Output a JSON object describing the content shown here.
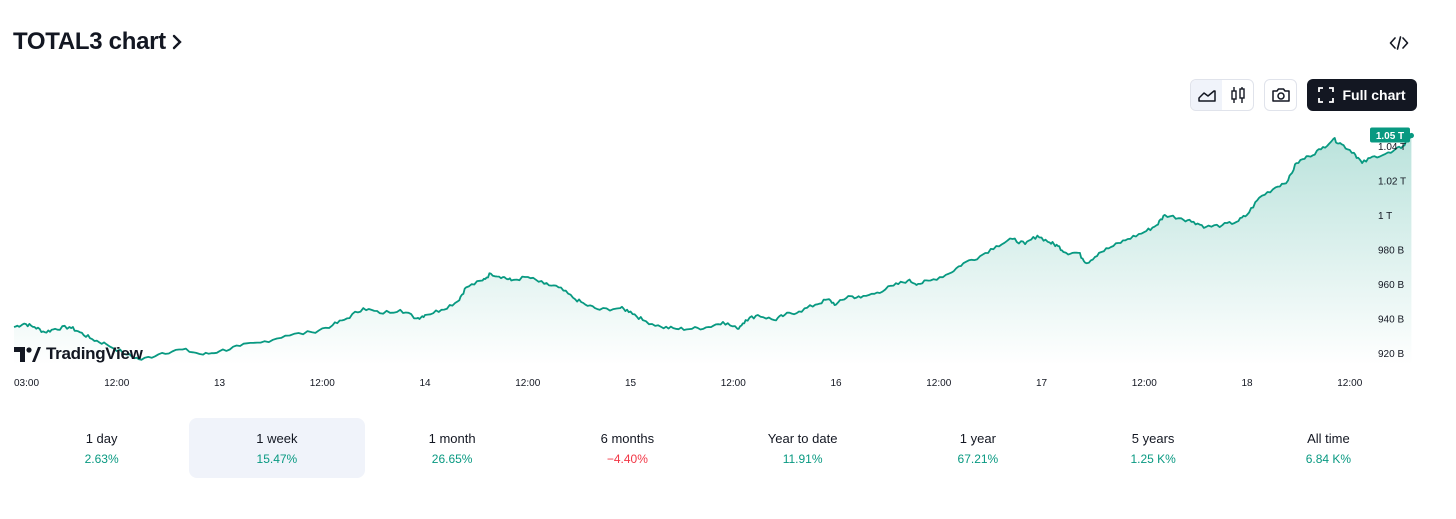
{
  "header": {
    "title": "TOTAL3 chart",
    "title_icon": "chevron-right-icon",
    "embed_icon": "code-icon"
  },
  "toolbar": {
    "line_icon": "area-chart-icon",
    "candle_icon": "candlestick-icon",
    "camera_icon": "camera-icon",
    "full_chart_label": "Full chart",
    "full_chart_icon": "fullscreen-icon"
  },
  "watermark": {
    "text": "TradingView"
  },
  "colors": {
    "line": "#089981",
    "badge": "#089981",
    "positive": "#089981",
    "negative": "#f23645"
  },
  "chart_data": {
    "type": "area",
    "title": "",
    "xlabel": "",
    "ylabel": "",
    "x_ticks": [
      "03:00",
      "12:00",
      "13",
      "12:00",
      "14",
      "12:00",
      "15",
      "12:00",
      "16",
      "12:00",
      "17",
      "12:00",
      "18",
      "12:00"
    ],
    "y_ticks": [
      "920 B",
      "940 B",
      "960 B",
      "980 B",
      "1 T",
      "1.02 T",
      "1.04 T"
    ],
    "ylim": [
      913,
      1055
    ],
    "last_value_label": "1.05 T",
    "last_value": 1046,
    "grid": false,
    "series": [
      {
        "points": [
          [
            0,
            935
          ],
          [
            0.05,
            937
          ],
          [
            0.1,
            935
          ],
          [
            0.15,
            932
          ],
          [
            0.2,
            934
          ],
          [
            0.27,
            935
          ],
          [
            0.32,
            932
          ],
          [
            0.38,
            928
          ],
          [
            0.45,
            925
          ],
          [
            0.55,
            919
          ],
          [
            0.62,
            916
          ],
          [
            0.72,
            920
          ],
          [
            0.82,
            922
          ],
          [
            0.92,
            919
          ],
          [
            1.0,
            921
          ],
          [
            1.1,
            924
          ],
          [
            1.2,
            926
          ],
          [
            1.32,
            930
          ],
          [
            1.45,
            932
          ],
          [
            1.55,
            936
          ],
          [
            1.62,
            940
          ],
          [
            1.7,
            946
          ],
          [
            1.78,
            943
          ],
          [
            1.88,
            945
          ],
          [
            1.96,
            940
          ],
          [
            2.0,
            942
          ],
          [
            2.08,
            945
          ],
          [
            2.16,
            950
          ],
          [
            2.2,
            958
          ],
          [
            2.28,
            962
          ],
          [
            2.32,
            966
          ],
          [
            2.38,
            964
          ],
          [
            2.42,
            962
          ],
          [
            2.5,
            964
          ],
          [
            2.58,
            960
          ],
          [
            2.65,
            958
          ],
          [
            2.72,
            952
          ],
          [
            2.78,
            948
          ],
          [
            2.85,
            945
          ],
          [
            2.95,
            946
          ],
          [
            3.0,
            944
          ],
          [
            3.06,
            939
          ],
          [
            3.15,
            935
          ],
          [
            3.22,
            934
          ],
          [
            3.3,
            934
          ],
          [
            3.38,
            935
          ],
          [
            3.45,
            938
          ],
          [
            3.52,
            934
          ],
          [
            3.56,
            939
          ],
          [
            3.62,
            942
          ],
          [
            3.7,
            939
          ],
          [
            3.75,
            942
          ],
          [
            3.82,
            944
          ],
          [
            3.9,
            948
          ],
          [
            3.96,
            951
          ],
          [
            4.0,
            948
          ],
          [
            4.06,
            953
          ],
          [
            4.12,
            952
          ],
          [
            4.2,
            955
          ],
          [
            4.28,
            959
          ],
          [
            4.35,
            962
          ],
          [
            4.4,
            960
          ],
          [
            4.46,
            962
          ],
          [
            4.55,
            966
          ],
          [
            4.62,
            972
          ],
          [
            4.7,
            976
          ],
          [
            4.78,
            982
          ],
          [
            4.86,
            986
          ],
          [
            4.92,
            983
          ],
          [
            4.98,
            988
          ],
          [
            5.04,
            984
          ],
          [
            5.08,
            982
          ],
          [
            5.12,
            978
          ],
          [
            5.18,
            978
          ],
          [
            5.22,
            972
          ],
          [
            5.28,
            978
          ],
          [
            5.35,
            982
          ],
          [
            5.42,
            986
          ],
          [
            5.5,
            990
          ],
          [
            5.56,
            994
          ],
          [
            5.6,
            1000
          ],
          [
            5.68,
            998
          ],
          [
            5.74,
            996
          ],
          [
            5.8,
            993
          ],
          [
            5.88,
            994
          ],
          [
            5.95,
            996
          ],
          [
            6.0,
            1000
          ],
          [
            6.06,
            1010
          ],
          [
            6.14,
            1016
          ],
          [
            6.2,
            1020
          ],
          [
            6.24,
            1030
          ],
          [
            6.3,
            1034
          ],
          [
            6.36,
            1038
          ],
          [
            6.42,
            1044
          ],
          [
            6.46,
            1041
          ],
          [
            6.52,
            1036
          ],
          [
            6.56,
            1030
          ],
          [
            6.62,
            1034
          ],
          [
            6.7,
            1036
          ],
          [
            6.76,
            1040
          ],
          [
            6.8,
            1046
          ]
        ]
      }
    ]
  },
  "periods": [
    {
      "label": "1 day",
      "value": "2.63%",
      "trend": "pos",
      "active": false
    },
    {
      "label": "1 week",
      "value": "15.47%",
      "trend": "pos",
      "active": true
    },
    {
      "label": "1 month",
      "value": "26.65%",
      "trend": "pos",
      "active": false
    },
    {
      "label": "6 months",
      "value": "−4.40%",
      "trend": "neg",
      "active": false
    },
    {
      "label": "Year to date",
      "value": "11.91%",
      "trend": "pos",
      "active": false
    },
    {
      "label": "1 year",
      "value": "67.21%",
      "trend": "pos",
      "active": false
    },
    {
      "label": "5 years",
      "value": "1.25 K%",
      "trend": "pos",
      "active": false
    },
    {
      "label": "All time",
      "value": "6.84 K%",
      "trend": "pos",
      "active": false
    }
  ]
}
